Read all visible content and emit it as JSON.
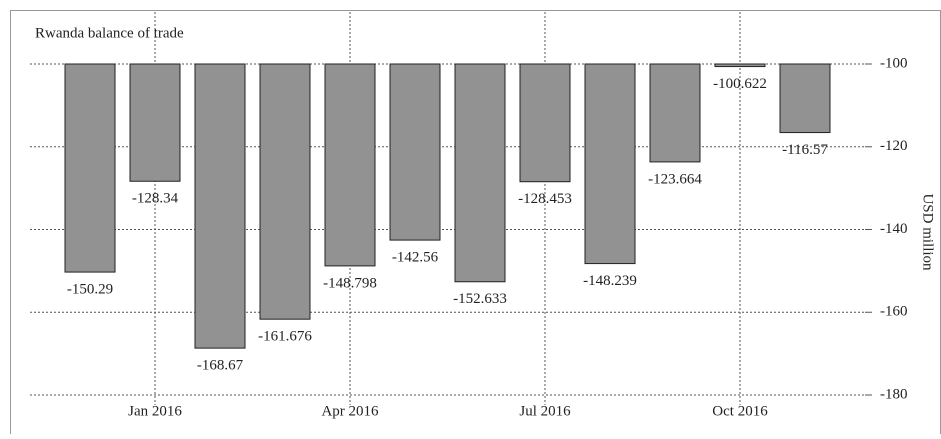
{
  "chart_data": {
    "type": "bar",
    "title": "Rwanda balance of trade",
    "y_label": "USD million",
    "categories": [
      null,
      "Jan 2016",
      null,
      null,
      "Apr 2016",
      null,
      null,
      "Jul 2016",
      null,
      null,
      "Oct 2016",
      null
    ],
    "values": [
      -150.29,
      -128.34,
      -168.67,
      -161.676,
      -148.798,
      -142.56,
      -152.633,
      -128.453,
      -148.239,
      -123.664,
      -100.622,
      -116.57
    ],
    "color": "#929292",
    "ylim": [
      -180,
      -100
    ],
    "yticks": [
      -100,
      -120,
      -140,
      -160,
      -180
    ],
    "grid": true
  }
}
